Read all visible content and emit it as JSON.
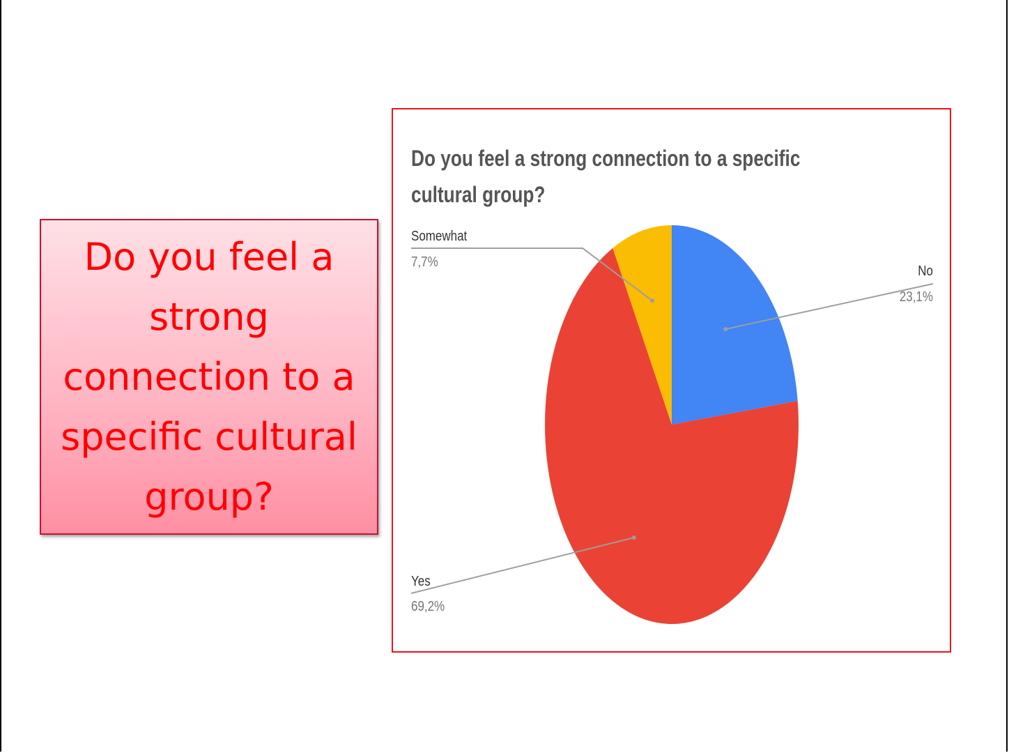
{
  "slide": {
    "question": "Do you feel a strong connection to a specific cultural group?"
  },
  "chart_data": {
    "type": "pie",
    "title": "Do you feel a strong connection to a specific cultural group?",
    "slices": [
      {
        "label": "No",
        "value": 23.1,
        "value_label": "23,1%",
        "color": "#4285F4"
      },
      {
        "label": "Yes",
        "value": 69.2,
        "value_label": "69,2%",
        "color": "#EA4335"
      },
      {
        "label": "Somewhat",
        "value": 7.7,
        "value_label": "7,7%",
        "color": "#FBBC04"
      }
    ],
    "label_style": "leader-lines",
    "label_color": "#333333",
    "value_color": "#757575"
  }
}
